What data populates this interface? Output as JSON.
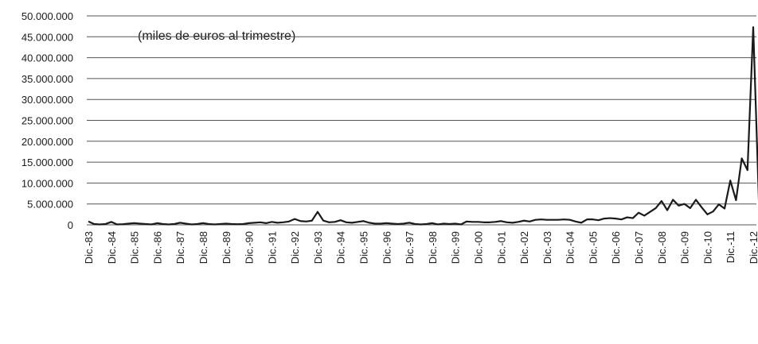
{
  "chart_data": {
    "type": "line",
    "annotation": "(miles de euros al trimestre)",
    "categories": [
      "Dic.-83",
      null,
      null,
      null,
      "Dic.-84",
      null,
      null,
      null,
      "Dic.-85",
      null,
      null,
      null,
      "Dic.-86",
      null,
      null,
      null,
      "Dic.-87",
      null,
      null,
      null,
      "Dic.-88",
      null,
      null,
      null,
      "Dic.-89",
      null,
      null,
      null,
      "Dic.-90",
      null,
      null,
      null,
      "Dic.-91",
      null,
      null,
      null,
      "Dic.-92",
      null,
      null,
      null,
      "Dic.-93",
      null,
      null,
      null,
      "Dic.-94",
      null,
      null,
      null,
      "Dic.-95",
      null,
      null,
      null,
      "Dic.-96",
      null,
      null,
      null,
      "Dic.-97",
      null,
      null,
      null,
      "Dic.-98",
      null,
      null,
      null,
      "Dic.-99",
      null,
      null,
      null,
      "Dic.-00",
      null,
      null,
      null,
      "Dic.-01",
      null,
      null,
      null,
      "Dic.-02",
      null,
      null,
      null,
      "Dic.-03",
      null,
      null,
      null,
      "Dic.-04",
      null,
      null,
      null,
      "Dic.-05",
      null,
      null,
      null,
      "Dic.-06",
      null,
      null,
      null,
      "Dic.-07",
      null,
      null,
      null,
      "Dic.-08",
      null,
      null,
      null,
      "Dic.-09",
      null,
      null,
      null,
      "Dic.-10",
      null,
      null,
      null,
      "Dic.-11",
      null,
      null,
      null,
      "Dic.-12",
      null
    ],
    "values": [
      800000,
      200000,
      100000,
      200000,
      700000,
      100000,
      150000,
      300000,
      400000,
      300000,
      200000,
      100000,
      400000,
      200000,
      100000,
      200000,
      500000,
      300000,
      100000,
      200000,
      400000,
      200000,
      100000,
      200000,
      300000,
      200000,
      150000,
      200000,
      400000,
      500000,
      600000,
      400000,
      700000,
      500000,
      600000,
      800000,
      1400000,
      900000,
      800000,
      1000000,
      3100000,
      1000000,
      600000,
      700000,
      1100000,
      600000,
      500000,
      700000,
      900000,
      500000,
      300000,
      300000,
      400000,
      300000,
      200000,
      300000,
      500000,
      200000,
      100000,
      200000,
      400000,
      100000,
      300000,
      200000,
      300000,
      100000,
      800000,
      700000,
      700000,
      600000,
      600000,
      700000,
      900000,
      600000,
      500000,
      700000,
      1000000,
      800000,
      1200000,
      1300000,
      1200000,
      1200000,
      1200000,
      1300000,
      1200000,
      800000,
      500000,
      1300000,
      1300000,
      1100000,
      1500000,
      1600000,
      1500000,
      1300000,
      1800000,
      1600000,
      2900000,
      2200000,
      3100000,
      4000000,
      5700000,
      3500000,
      6000000,
      4600000,
      5000000,
      4000000,
      6000000,
      4200000,
      2500000,
      3200000,
      4900000,
      3900000,
      10600000,
      5900000,
      15900000,
      13100000,
      47300000,
      5000000
    ],
    "color": "#1a1a1a",
    "ylim": [
      0,
      50000000
    ],
    "yticks": [
      0,
      {
        "value": 5000000,
        "label": "5.000.000"
      },
      {
        "value": 10000000,
        "label": "10.000.000"
      },
      {
        "value": 15000000,
        "label": "15.000.000"
      },
      {
        "value": 20000000,
        "label": "20.000.000"
      },
      {
        "value": 25000000,
        "label": "25.000.000"
      },
      {
        "value": 30000000,
        "label": "30.000.000"
      },
      {
        "value": 35000000,
        "label": "35.000.000"
      },
      {
        "value": 40000000,
        "label": "40.000.000"
      },
      {
        "value": 45000000,
        "label": "45.000.000"
      },
      {
        "value": 50000000,
        "label": "50.000.000"
      }
    ],
    "grid": true
  }
}
